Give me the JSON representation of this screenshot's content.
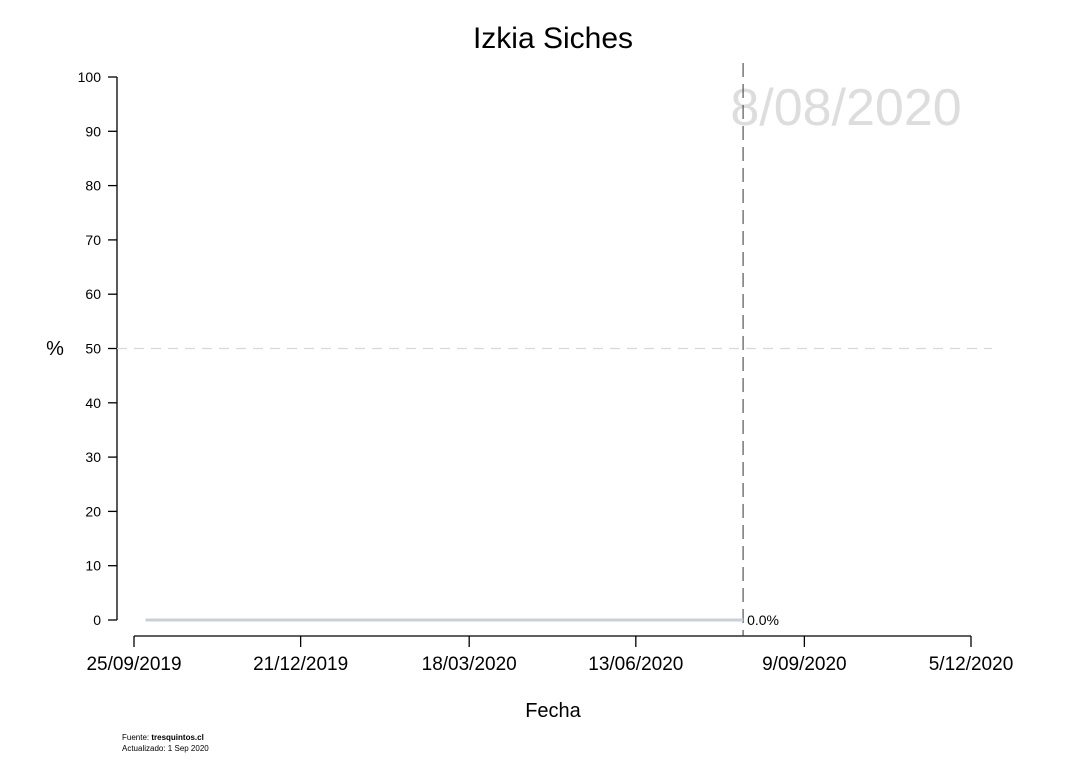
{
  "chart_data": {
    "type": "line",
    "title": "Izkia Siches",
    "xlabel": "Fecha",
    "ylabel": "%",
    "ylim": [
      0,
      100
    ],
    "y_ticks": [
      0,
      10,
      20,
      30,
      40,
      50,
      60,
      70,
      80,
      90,
      100
    ],
    "x_ticks": [
      "25/09/2019",
      "21/12/2019",
      "18/03/2020",
      "13/06/2020",
      "9/09/2020",
      "5/12/2020"
    ],
    "xlim": [
      "2019-09-25",
      "2020-12-05"
    ],
    "reference_line_y": 50,
    "current_date_line": "2020-08-08",
    "watermark_date": "8/08/2020",
    "grid": false,
    "series": [
      {
        "color": "#c8d0d8",
        "points": [
          {
            "x": "2019-10-01",
            "y": 0
          },
          {
            "x": "2020-08-08",
            "y": 0
          }
        ]
      }
    ],
    "end_label": "0.0%"
  },
  "footer": {
    "source_label": "Fuente: ",
    "source_site": "tresquintos.cl",
    "updated": "Actualizado: 1 Sep 2020"
  }
}
